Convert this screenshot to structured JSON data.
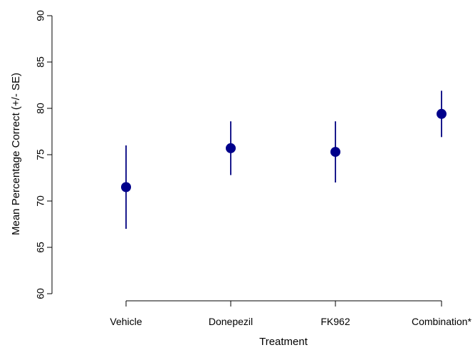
{
  "chart_data": {
    "type": "scatter",
    "xlabel": "Treatment",
    "ylabel": "Mean Percentage Correct (+/- SE)",
    "categories": [
      "Vehicle",
      "Donepezil",
      "FK962",
      "Combination*"
    ],
    "yticks": [
      60,
      65,
      70,
      75,
      80,
      85,
      90
    ],
    "ylim": [
      60,
      90
    ],
    "series": [
      {
        "values": [
          71.5,
          75.7,
          75.3,
          79.4
        ],
        "lower": [
          67.0,
          72.8,
          72.0,
          76.9
        ],
        "upper": [
          76.0,
          78.6,
          78.6,
          81.9
        ]
      }
    ],
    "grid": false,
    "legend": "none",
    "color": "#1a1a8c",
    "point_color": "#00008b"
  }
}
